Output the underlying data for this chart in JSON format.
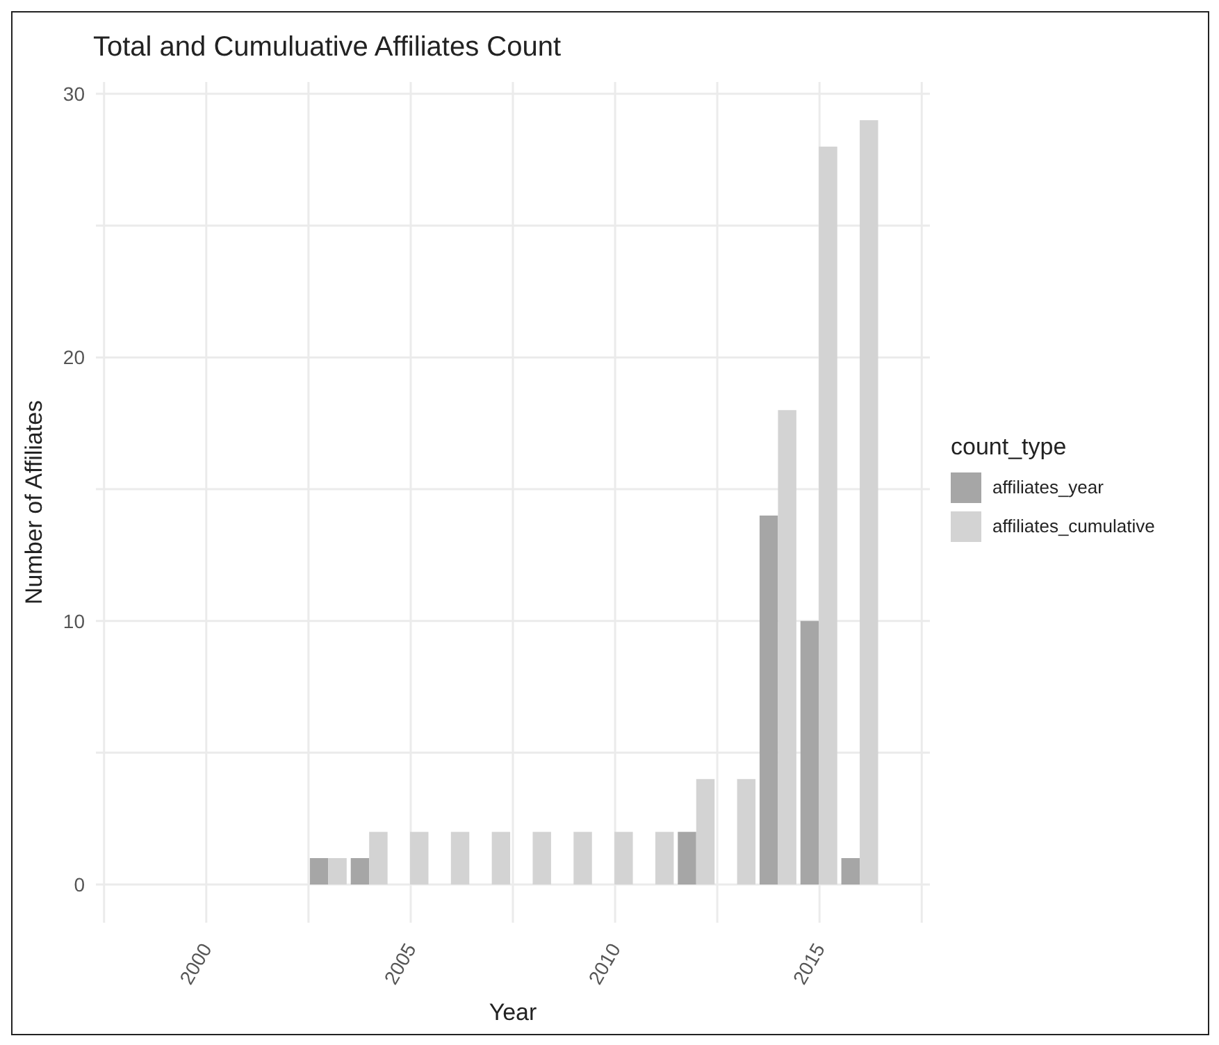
{
  "chart_data": {
    "type": "bar",
    "title": "Total and Cumuluative Affiliates Count",
    "xlabel": "Year",
    "ylabel": "Number of Affiliates",
    "legend_title": "count_type",
    "x": [
      2003,
      2004,
      2005,
      2006,
      2007,
      2008,
      2009,
      2010,
      2011,
      2012,
      2013,
      2014,
      2015,
      2016
    ],
    "series": [
      {
        "name": "affiliates_year",
        "color": "#a6a6a6",
        "values": [
          1,
          1,
          0,
          0,
          0,
          0,
          0,
          0,
          0,
          2,
          0,
          14,
          10,
          1
        ]
      },
      {
        "name": "affiliates_cumulative",
        "color": "#d3d3d3",
        "values": [
          1,
          2,
          2,
          2,
          2,
          2,
          2,
          2,
          2,
          4,
          4,
          18,
          28,
          29
        ]
      }
    ],
    "xlim": [
      1997.3,
      2017.7
    ],
    "xticks": [
      2000,
      2005,
      2010,
      2015
    ],
    "ylim": [
      -1.45,
      30.45
    ],
    "yticks": [
      0,
      10,
      20,
      30
    ],
    "grid": true,
    "legend": "right"
  }
}
